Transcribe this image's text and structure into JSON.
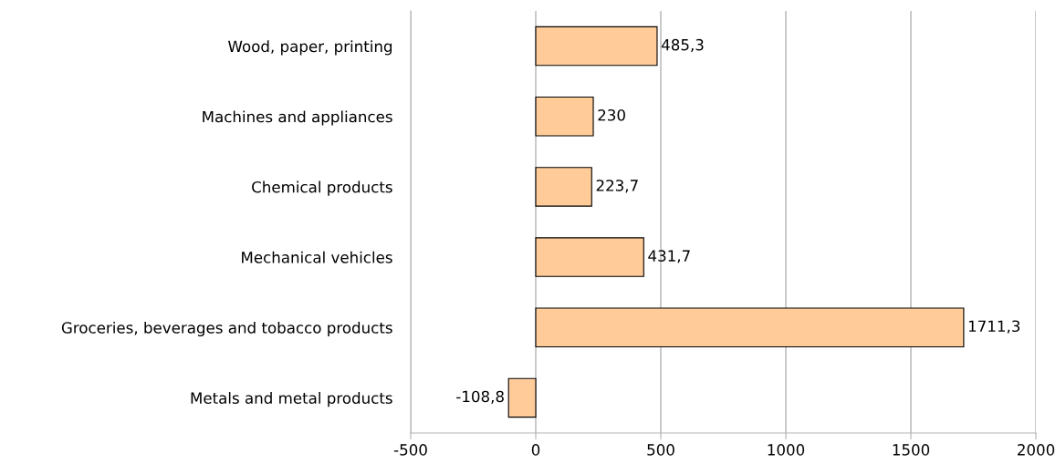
{
  "chart_data": {
    "type": "bar",
    "orientation": "horizontal",
    "categories": [
      "Wood, paper, printing",
      "Machines and appliances",
      "Chemical products",
      "Mechanical vehicles",
      "Groceries, beverages and tobacco products",
      "Metals and metal products"
    ],
    "values": [
      485.3,
      230,
      223.7,
      431.7,
      1711.3,
      -108.8
    ],
    "value_labels": [
      "485,3",
      "230",
      "223,7",
      "431,7",
      "1711,3",
      "-108,8"
    ],
    "color": "#ffcc99",
    "xlim": [
      -500,
      2000
    ],
    "xticks": [
      {
        "value": -500,
        "label": "-500"
      },
      0,
      500,
      1000,
      1500,
      2000
    ],
    "grid": "x"
  }
}
